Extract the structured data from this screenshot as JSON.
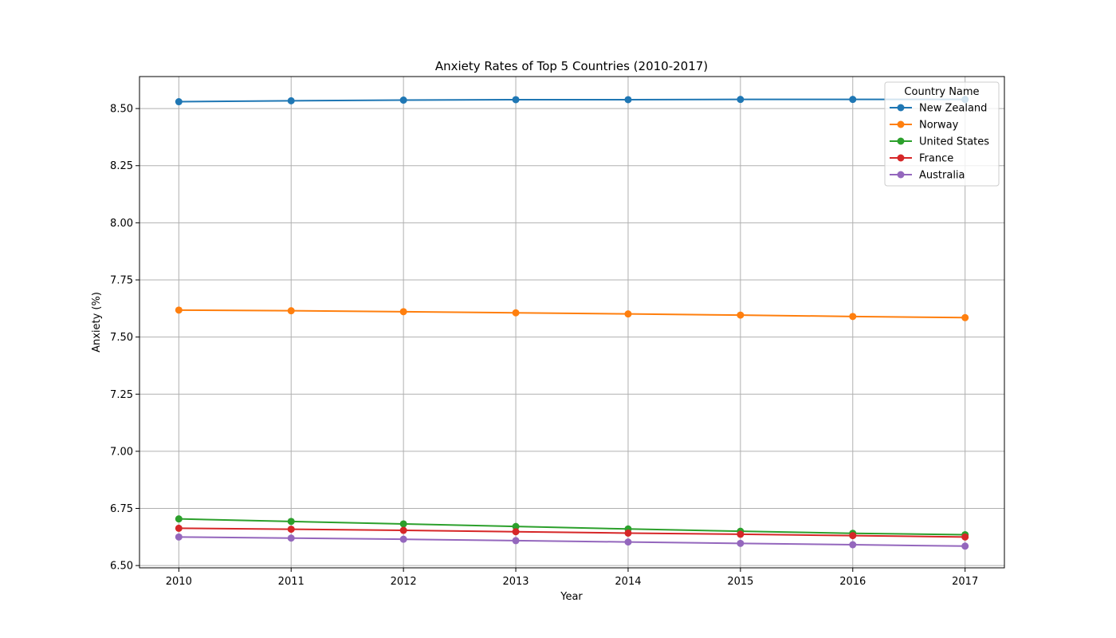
{
  "chart_data": {
    "type": "line",
    "title": "Anxiety Rates of Top 5 Countries (2010-2017)",
    "xlabel": "Year",
    "ylabel": "Anxiety (%)",
    "x": [
      2010,
      2011,
      2012,
      2013,
      2014,
      2015,
      2016,
      2017
    ],
    "xlim": [
      2009.65,
      2017.35
    ],
    "ylim": [
      6.49,
      8.64
    ],
    "yticks": [
      "6.50",
      "6.75",
      "7.00",
      "7.25",
      "7.50",
      "7.75",
      "8.00",
      "8.25",
      "8.50"
    ],
    "grid": true,
    "legend": {
      "title": "Country Name",
      "position": "upper-right"
    },
    "series": [
      {
        "name": "New Zealand",
        "color": "#1f77b4",
        "values": [
          8.53,
          8.534,
          8.537,
          8.539,
          8.539,
          8.54,
          8.54,
          8.54
        ]
      },
      {
        "name": "Norway",
        "color": "#ff7f0e",
        "values": [
          7.618,
          7.615,
          7.611,
          7.606,
          7.601,
          7.596,
          7.59,
          7.585
        ]
      },
      {
        "name": "United States",
        "color": "#2ca02c",
        "values": [
          6.704,
          6.693,
          6.682,
          6.671,
          6.66,
          6.65,
          6.641,
          6.635
        ]
      },
      {
        "name": "France",
        "color": "#d62728",
        "values": [
          6.663,
          6.659,
          6.654,
          6.648,
          6.642,
          6.637,
          6.631,
          6.625
        ]
      },
      {
        "name": "Australia",
        "color": "#9467bd",
        "values": [
          6.625,
          6.62,
          6.615,
          6.609,
          6.603,
          6.597,
          6.591,
          6.585
        ]
      }
    ]
  }
}
